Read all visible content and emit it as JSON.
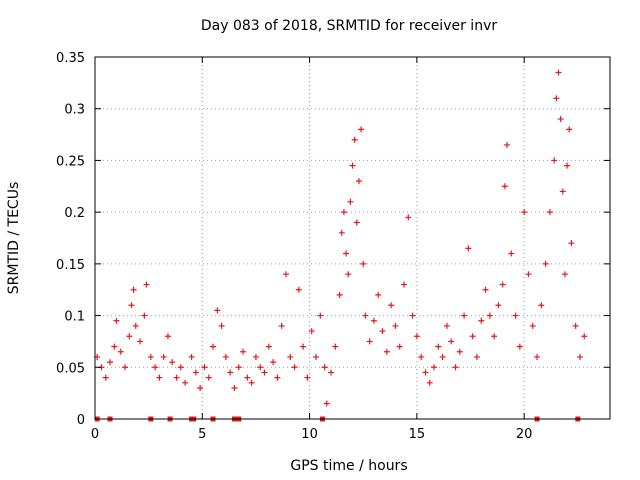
{
  "chart_data": {
    "type": "scatter",
    "title": "Day 083 of 2018, SRMTID for receiver invr",
    "xlabel": "GPS time / hours",
    "ylabel": "SRMTID / TECUs",
    "xlim": [
      0,
      24
    ],
    "ylim": [
      0,
      0.35
    ],
    "grid": true,
    "marker": "+",
    "color": "#e41a1c",
    "xticks": [
      0,
      5,
      10,
      15,
      20
    ],
    "xtick_labels": [
      "0",
      "5",
      "10",
      "15",
      "20"
    ],
    "yticks": [
      0,
      0.05,
      0.1,
      0.15,
      0.2,
      0.25,
      0.3,
      0.35
    ],
    "ytick_labels": [
      "0",
      "0.05",
      "0.1",
      "0.15",
      "0.2",
      "0.25",
      "0.3",
      "0.35"
    ],
    "series": [
      {
        "name": "SRMTID",
        "points": [
          [
            0.1,
            0.06
          ],
          [
            0.3,
            0.05
          ],
          [
            0.5,
            0.04
          ],
          [
            0.7,
            0.055
          ],
          [
            0.9,
            0.07
          ],
          [
            1.0,
            0.095
          ],
          [
            1.2,
            0.065
          ],
          [
            1.4,
            0.05
          ],
          [
            1.6,
            0.08
          ],
          [
            1.7,
            0.11
          ],
          [
            1.8,
            0.125
          ],
          [
            1.9,
            0.09
          ],
          [
            2.1,
            0.075
          ],
          [
            2.3,
            0.1
          ],
          [
            2.4,
            0.13
          ],
          [
            2.6,
            0.06
          ],
          [
            2.8,
            0.05
          ],
          [
            3.0,
            0.04
          ],
          [
            3.2,
            0.06
          ],
          [
            3.4,
            0.08
          ],
          [
            3.6,
            0.055
          ],
          [
            3.8,
            0.04
          ],
          [
            4.0,
            0.05
          ],
          [
            4.2,
            0.035
          ],
          [
            4.5,
            0.06
          ],
          [
            4.7,
            0.045
          ],
          [
            4.9,
            0.03
          ],
          [
            5.1,
            0.05
          ],
          [
            5.3,
            0.04
          ],
          [
            5.5,
            0.07
          ],
          [
            5.7,
            0.105
          ],
          [
            5.9,
            0.09
          ],
          [
            6.1,
            0.06
          ],
          [
            6.3,
            0.045
          ],
          [
            6.5,
            0.03
          ],
          [
            6.7,
            0.05
          ],
          [
            6.9,
            0.065
          ],
          [
            7.1,
            0.04
          ],
          [
            7.3,
            0.035
          ],
          [
            7.5,
            0.06
          ],
          [
            7.7,
            0.05
          ],
          [
            7.9,
            0.045
          ],
          [
            8.1,
            0.07
          ],
          [
            8.3,
            0.055
          ],
          [
            8.5,
            0.04
          ],
          [
            8.7,
            0.09
          ],
          [
            8.9,
            0.14
          ],
          [
            9.1,
            0.06
          ],
          [
            9.3,
            0.05
          ],
          [
            9.5,
            0.125
          ],
          [
            9.7,
            0.07
          ],
          [
            9.9,
            0.04
          ],
          [
            10.1,
            0.085
          ],
          [
            10.3,
            0.06
          ],
          [
            10.5,
            0.1
          ],
          [
            10.7,
            0.05
          ],
          [
            10.8,
            0.015
          ],
          [
            11.0,
            0.045
          ],
          [
            11.2,
            0.07
          ],
          [
            11.4,
            0.12
          ],
          [
            11.5,
            0.18
          ],
          [
            11.6,
            0.2
          ],
          [
            11.7,
            0.16
          ],
          [
            11.8,
            0.14
          ],
          [
            11.9,
            0.21
          ],
          [
            12.0,
            0.245
          ],
          [
            12.1,
            0.27
          ],
          [
            12.2,
            0.19
          ],
          [
            12.3,
            0.23
          ],
          [
            12.4,
            0.28
          ],
          [
            12.5,
            0.15
          ],
          [
            12.6,
            0.1
          ],
          [
            12.8,
            0.075
          ],
          [
            13.0,
            0.095
          ],
          [
            13.2,
            0.12
          ],
          [
            13.4,
            0.085
          ],
          [
            13.6,
            0.065
          ],
          [
            13.8,
            0.11
          ],
          [
            14.0,
            0.09
          ],
          [
            14.2,
            0.07
          ],
          [
            14.4,
            0.13
          ],
          [
            14.6,
            0.195
          ],
          [
            14.8,
            0.1
          ],
          [
            15.0,
            0.08
          ],
          [
            15.2,
            0.06
          ],
          [
            15.4,
            0.045
          ],
          [
            15.6,
            0.035
          ],
          [
            15.8,
            0.05
          ],
          [
            16.0,
            0.07
          ],
          [
            16.2,
            0.06
          ],
          [
            16.4,
            0.09
          ],
          [
            16.6,
            0.075
          ],
          [
            16.8,
            0.05
          ],
          [
            17.0,
            0.065
          ],
          [
            17.2,
            0.1
          ],
          [
            17.4,
            0.165
          ],
          [
            17.6,
            0.08
          ],
          [
            17.8,
            0.06
          ],
          [
            18.0,
            0.095
          ],
          [
            18.2,
            0.125
          ],
          [
            18.4,
            0.1
          ],
          [
            18.6,
            0.08
          ],
          [
            18.8,
            0.11
          ],
          [
            19.0,
            0.13
          ],
          [
            19.1,
            0.225
          ],
          [
            19.2,
            0.265
          ],
          [
            19.4,
            0.16
          ],
          [
            19.6,
            0.1
          ],
          [
            19.8,
            0.07
          ],
          [
            20.0,
            0.2
          ],
          [
            20.2,
            0.14
          ],
          [
            20.4,
            0.09
          ],
          [
            20.6,
            0.06
          ],
          [
            20.8,
            0.11
          ],
          [
            21.0,
            0.15
          ],
          [
            21.2,
            0.2
          ],
          [
            21.4,
            0.25
          ],
          [
            21.5,
            0.31
          ],
          [
            21.6,
            0.335
          ],
          [
            21.7,
            0.29
          ],
          [
            21.8,
            0.22
          ],
          [
            21.9,
            0.14
          ],
          [
            22.0,
            0.245
          ],
          [
            22.1,
            0.28
          ],
          [
            22.2,
            0.17
          ],
          [
            22.4,
            0.09
          ],
          [
            22.6,
            0.06
          ],
          [
            22.8,
            0.08
          ]
        ]
      }
    ],
    "bottom_markers_x": [
      0.1,
      0.7,
      2.6,
      3.5,
      4.5,
      4.6,
      5.5,
      6.5,
      6.7,
      10.6,
      20.6,
      22.5
    ]
  }
}
